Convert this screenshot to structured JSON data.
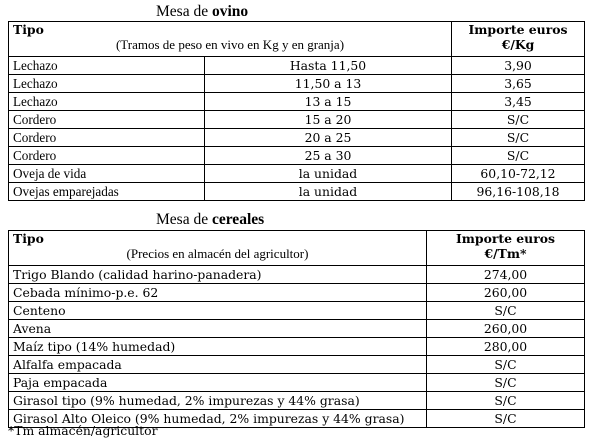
{
  "ovino": {
    "title_prefix": "Mesa de",
    "title_bold": "ovino",
    "header": {
      "tipo": "Tipo",
      "tramos": "(Tramos de peso en vivo en Kg y en granja)",
      "importe": "Importe euros",
      "unit": "€/Kg"
    },
    "rows": [
      {
        "tipo": "Lechazo",
        "tramo": "Hasta 11,50",
        "importe": "3,90"
      },
      {
        "tipo": "Lechazo",
        "tramo": "11,50 a 13",
        "importe": "3,65"
      },
      {
        "tipo": "Lechazo",
        "tramo": "13 a 15",
        "importe": "3,45"
      },
      {
        "tipo": "Cordero",
        "tramo": "15 a 20",
        "importe": "S/C"
      },
      {
        "tipo": "Cordero",
        "tramo": "20 a 25",
        "importe": "S/C"
      },
      {
        "tipo": "Cordero",
        "tramo": "25 a 30",
        "importe": "S/C"
      },
      {
        "tipo": "Oveja de vida",
        "tramo": "la unidad",
        "importe": "60,10-72,12"
      },
      {
        "tipo": "Ovejas emparejadas",
        "tramo": "la unidad",
        "importe": "96,16-108,18"
      }
    ]
  },
  "cereales": {
    "title_prefix": "Mesa de",
    "title_bold": "cereales",
    "header": {
      "tipo": "Tipo",
      "precios": "(Precios en almacén del agricultor)",
      "importe": "Importe euros",
      "unit": "€/Tm*"
    },
    "rows": [
      {
        "tipo": "Trigo Blando (calidad harino-panadera)",
        "importe": "274,00"
      },
      {
        "tipo": "Cebada mínimo-p.e. 62",
        "importe": "260,00"
      },
      {
        "tipo": "Centeno",
        "importe": "S/C"
      },
      {
        "tipo": "Avena",
        "importe": "260,00"
      },
      {
        "tipo": "Maíz tipo (14% humedad)",
        "importe": "280,00"
      },
      {
        "tipo": "Alfalfa empacada",
        "importe": "S/C"
      },
      {
        "tipo": "Paja empacada",
        "importe": "S/C"
      },
      {
        "tipo": "Girasol tipo (9% humedad, 2% impurezas y 44% grasa)",
        "importe": "S/C"
      },
      {
        "tipo": "Girasol Alto Oleico (9% humedad, 2% impurezas y 44% grasa)",
        "importe": "S/C"
      }
    ]
  },
  "footnote": "*Tm almacén/agricultor"
}
